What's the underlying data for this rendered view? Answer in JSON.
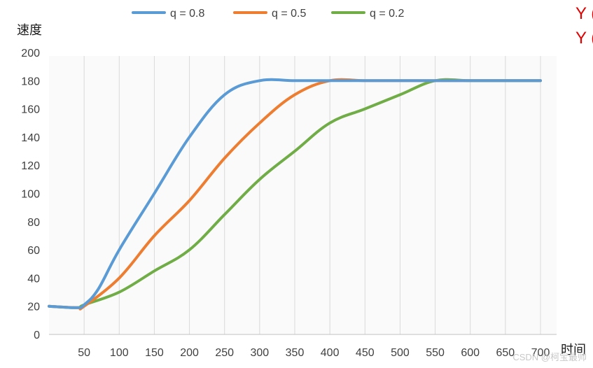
{
  "chart_data": {
    "type": "line",
    "ylabel": "速度",
    "xlabel": "时间",
    "ylim": [
      0,
      200
    ],
    "yticks": [
      "0",
      "20",
      "40",
      "60",
      "80",
      "100",
      "120",
      "140",
      "160",
      "180",
      "200"
    ],
    "xlim": [
      0,
      700
    ],
    "xticks": [
      "50",
      "100",
      "150",
      "200",
      "250",
      "300",
      "350",
      "400",
      "450",
      "500",
      "550",
      "600",
      "650",
      "700"
    ],
    "vertical_grid": true,
    "legend_position": "top",
    "series": [
      {
        "name": "q = 0.8",
        "color": "#5b9bd5",
        "x": [
          0,
          40,
          50,
          70,
          100,
          150,
          200,
          250,
          300,
          350,
          400,
          450,
          500,
          550,
          600,
          650,
          700
        ],
        "y": [
          20,
          19,
          21,
          32,
          60,
          100,
          140,
          170,
          180,
          180,
          180,
          180,
          180,
          180,
          180,
          180,
          180
        ]
      },
      {
        "name": "q = 0.5",
        "color": "#ed7d31",
        "x": [
          0,
          40,
          50,
          100,
          150,
          200,
          250,
          300,
          350,
          400,
          450,
          500,
          550,
          600,
          650,
          700
        ],
        "y": [
          20,
          19,
          20,
          40,
          70,
          95,
          125,
          150,
          170,
          180,
          180,
          180,
          180,
          180,
          180,
          180
        ]
      },
      {
        "name": "q = 0.2",
        "color": "#70ad47",
        "x": [
          0,
          40,
          50,
          100,
          150,
          200,
          250,
          300,
          350,
          400,
          450,
          500,
          550,
          600,
          650,
          700
        ],
        "y": [
          20,
          19,
          21,
          30,
          45,
          60,
          85,
          110,
          130,
          150,
          160,
          170,
          180,
          180,
          180,
          180
        ]
      }
    ]
  },
  "corner_text": [
    "Y (",
    "Y ("
  ],
  "watermark": "CSDN @柯宝最帅"
}
